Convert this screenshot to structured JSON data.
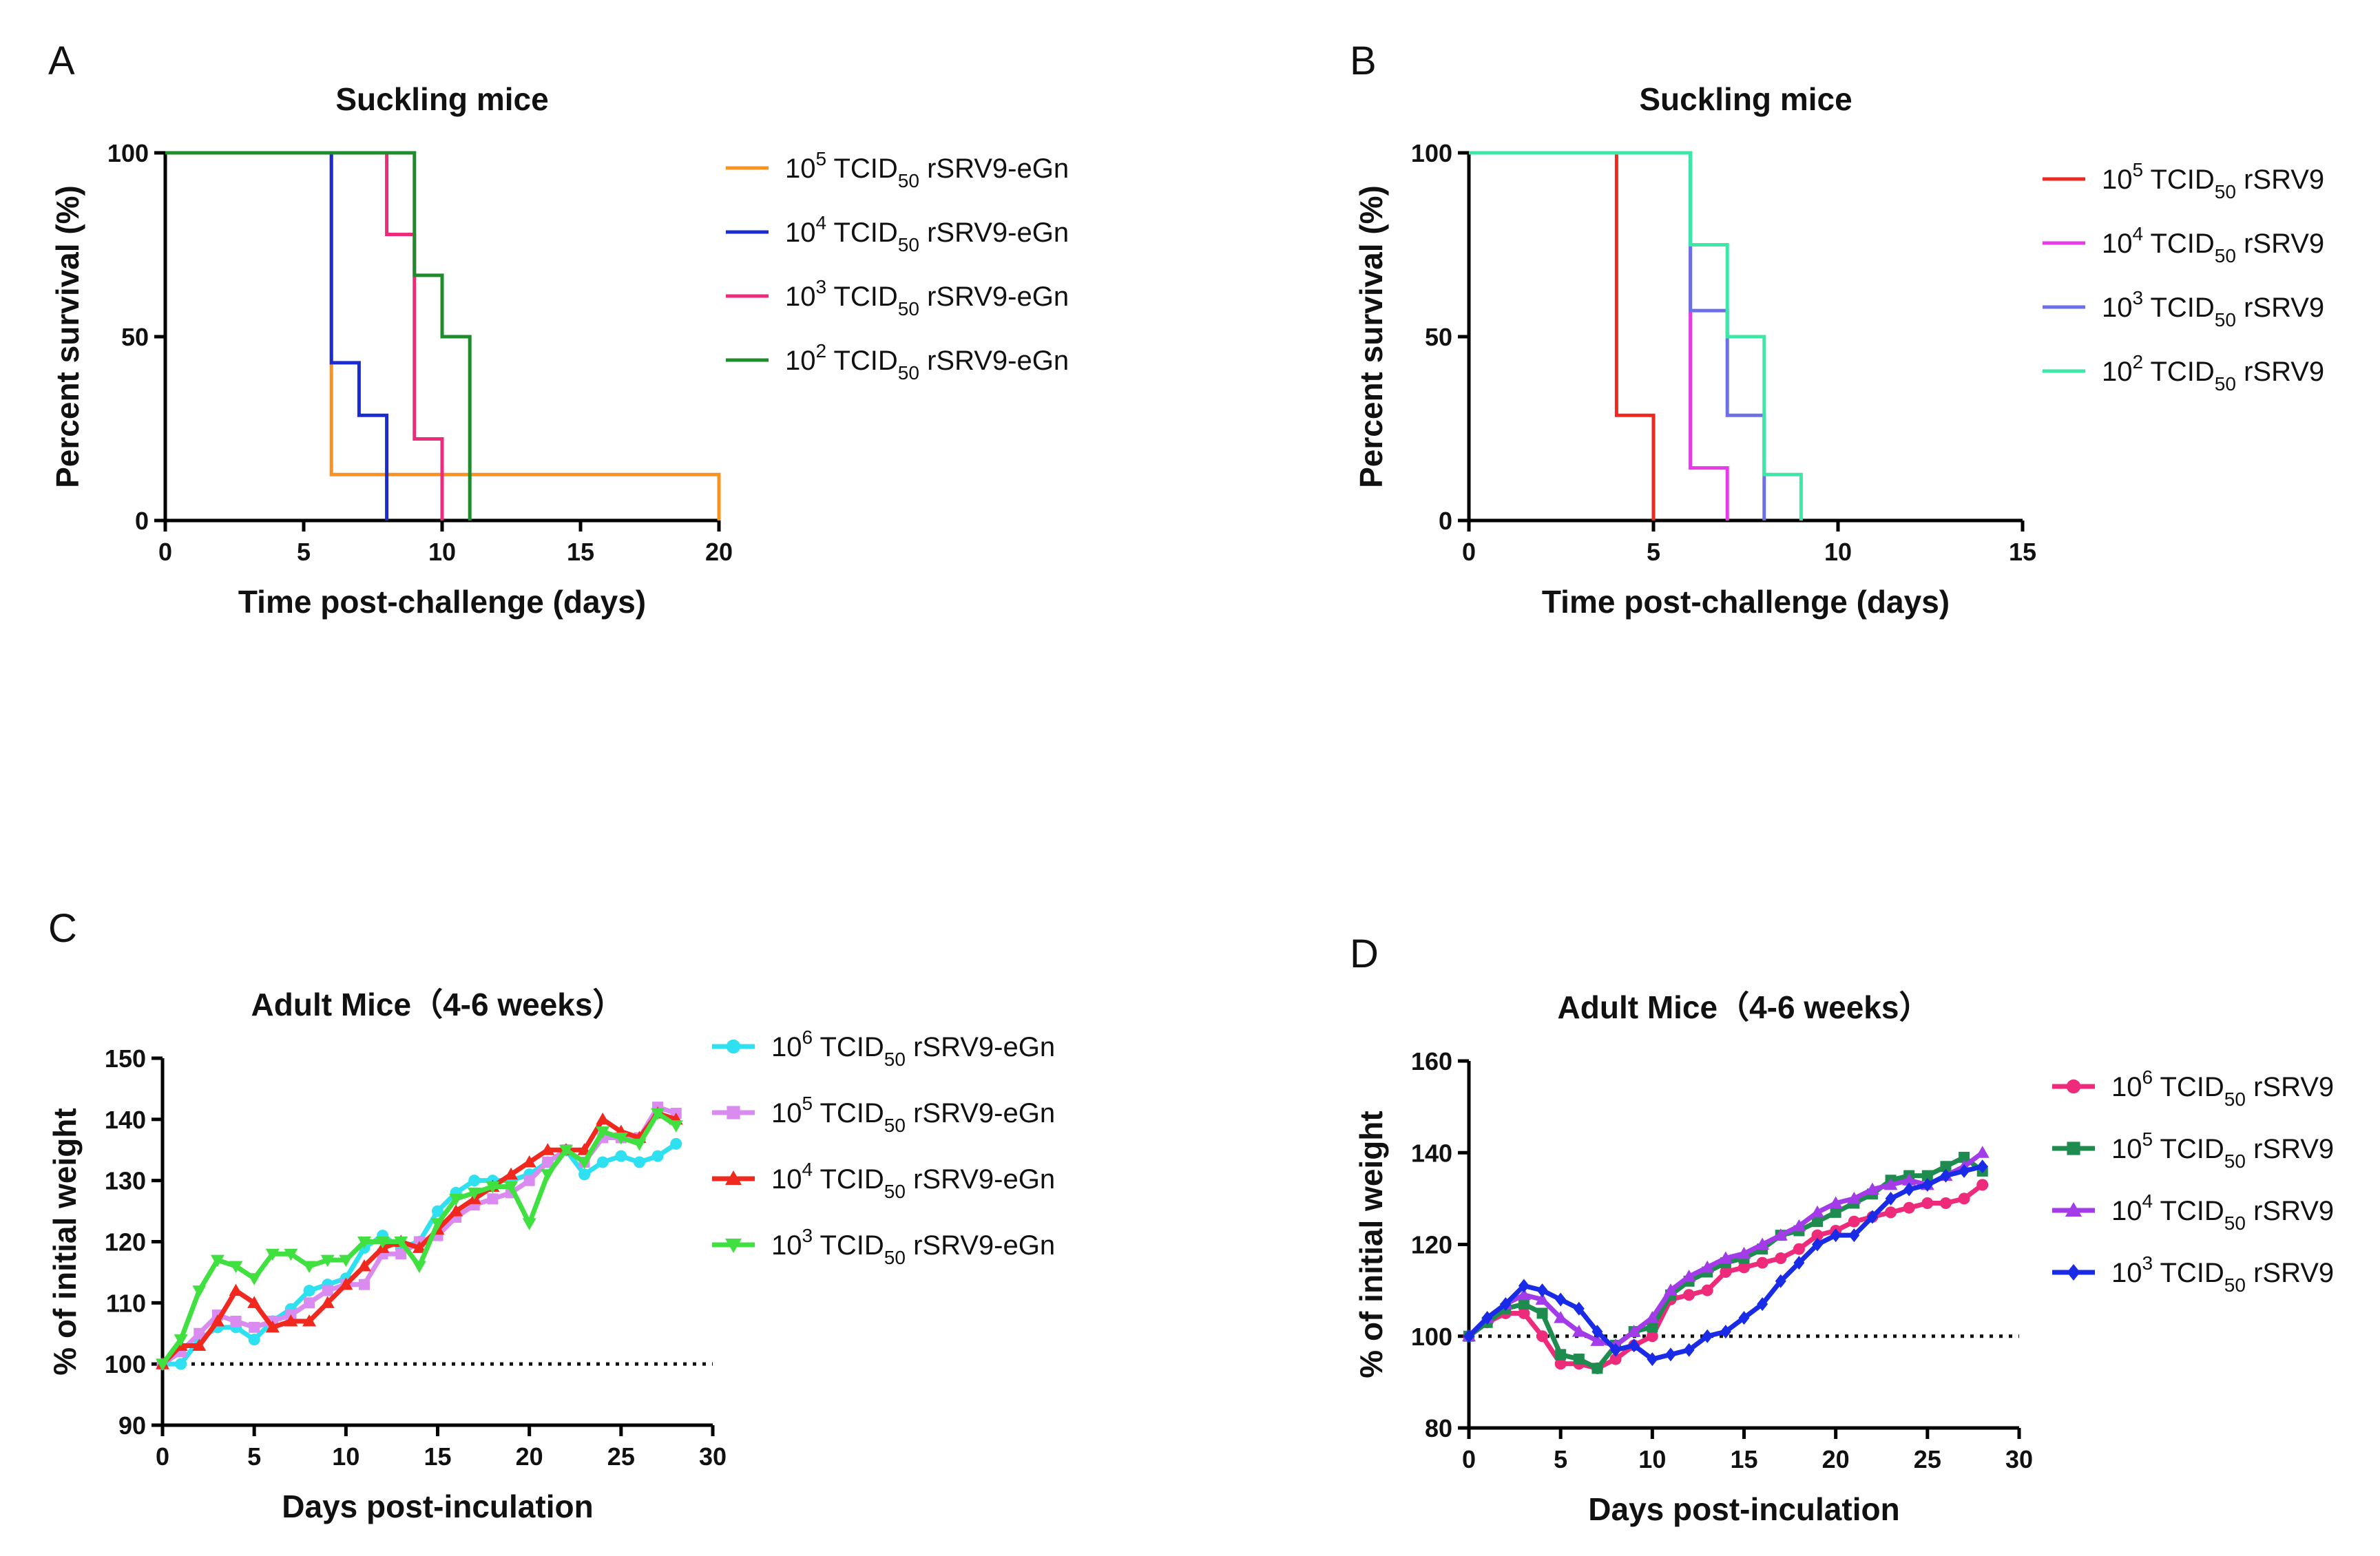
{
  "chart_data": [
    {
      "id": "A",
      "type": "line",
      "panel_label": "A",
      "title": "Suckling mice",
      "xlabel": "Time post-challenge (days)",
      "ylabel": "Percent survival (%)",
      "xlim": [
        0,
        20
      ],
      "ylim": [
        0,
        100
      ],
      "xticks": [
        0,
        5,
        10,
        15,
        20
      ],
      "yticks": [
        0,
        50,
        100
      ],
      "step": true,
      "series": [
        {
          "name": "rSRV9-eGn",
          "exp": "5",
          "color": "#F7931E",
          "marker": "none",
          "x": [
            0,
            6,
            20,
            20
          ],
          "y": [
            100,
            12.5,
            12.5,
            0
          ]
        },
        {
          "name": "rSRV9-eGn",
          "exp": "4",
          "color": "#1A2BD1",
          "marker": "none",
          "x": [
            0,
            6,
            7,
            8
          ],
          "y": [
            100,
            42.9,
            28.6,
            0
          ]
        },
        {
          "name": "rSRV9-eGn",
          "exp": "3",
          "color": "#EE2A7B",
          "marker": "none",
          "x": [
            0,
            8,
            9,
            10
          ],
          "y": [
            100,
            77.8,
            22.2,
            0
          ]
        },
        {
          "name": "rSRV9-eGn",
          "exp": "2",
          "color": "#1E8C2B",
          "marker": "none",
          "x": [
            0,
            9,
            10,
            11
          ],
          "y": [
            100,
            66.7,
            50,
            0
          ]
        }
      ]
    },
    {
      "id": "B",
      "type": "line",
      "panel_label": "B",
      "title": "Suckling mice",
      "xlabel": "Time post-challenge (days)",
      "ylabel": "Percent survival (%)",
      "xlim": [
        0,
        15
      ],
      "ylim": [
        0,
        100
      ],
      "xticks": [
        0,
        5,
        10,
        15
      ],
      "yticks": [
        0,
        50,
        100
      ],
      "step": true,
      "series": [
        {
          "name": "rSRV9",
          "exp": "5",
          "color": "#F0281E",
          "marker": "none",
          "x": [
            0,
            4,
            5
          ],
          "y": [
            100,
            28.6,
            0
          ]
        },
        {
          "name": "rSRV9",
          "exp": "4",
          "color": "#E83BE8",
          "marker": "none",
          "x": [
            0,
            6,
            7
          ],
          "y": [
            100,
            14.3,
            0
          ]
        },
        {
          "name": "rSRV9",
          "exp": "3",
          "color": "#6B6FE8",
          "marker": "none",
          "x": [
            0,
            6,
            7,
            8
          ],
          "y": [
            100,
            57.1,
            28.6,
            0
          ]
        },
        {
          "name": "rSRV9",
          "exp": "2",
          "color": "#3BE8A8",
          "marker": "none",
          "x": [
            0,
            6,
            7,
            8,
            9
          ],
          "y": [
            100,
            75,
            50,
            12.5,
            0
          ]
        }
      ]
    },
    {
      "id": "C",
      "type": "line",
      "panel_label": "C",
      "title": "Adult Mice（4-6 weeks）",
      "xlabel": "Days post-inculation",
      "ylabel": "% of initial weight",
      "xlim": [
        0,
        30
      ],
      "ylim": [
        90,
        150
      ],
      "xticks": [
        0,
        5,
        10,
        15,
        20,
        25,
        30
      ],
      "yticks": [
        90,
        100,
        110,
        120,
        130,
        140,
        150
      ],
      "reference_line": 100,
      "step": false,
      "series": [
        {
          "name": "rSRV9-eGn",
          "exp": "6",
          "color": "#2EE0F0",
          "marker": "circle",
          "x": [
            0,
            1,
            2,
            3,
            4,
            5,
            6,
            7,
            8,
            9,
            10,
            11,
            12,
            13,
            14,
            15,
            16,
            17,
            18,
            19,
            20,
            21,
            22,
            23,
            24,
            25,
            26,
            27,
            28
          ],
          "y": [
            100,
            100,
            104,
            106,
            106,
            104,
            107,
            109,
            112,
            113,
            114,
            119,
            121,
            119,
            120,
            125,
            128,
            130,
            130,
            130,
            131,
            133,
            135,
            131,
            133,
            134,
            133,
            134,
            136
          ]
        },
        {
          "name": "rSRV9-eGn",
          "exp": "5",
          "color": "#D98BF0",
          "marker": "square",
          "x": [
            0,
            1,
            2,
            3,
            4,
            5,
            6,
            7,
            8,
            9,
            10,
            11,
            12,
            13,
            14,
            15,
            16,
            17,
            18,
            19,
            20,
            21,
            22,
            23,
            24,
            25,
            26,
            27,
            28
          ],
          "y": [
            100,
            102,
            105,
            108,
            107,
            106,
            107,
            108,
            110,
            112,
            113,
            113,
            118,
            118,
            120,
            121,
            124,
            126,
            127,
            128,
            130,
            133,
            135,
            133,
            137,
            137,
            137,
            142,
            141
          ]
        },
        {
          "name": "rSRV9-eGn",
          "exp": "4",
          "color": "#F0281E",
          "marker": "triangle",
          "x": [
            0,
            1,
            2,
            3,
            4,
            5,
            6,
            7,
            8,
            9,
            10,
            11,
            12,
            13,
            14,
            15,
            16,
            17,
            18,
            19,
            20,
            21,
            22,
            23,
            24,
            25,
            26,
            27,
            28
          ],
          "y": [
            100,
            103,
            103,
            107,
            112,
            110,
            106,
            107,
            107,
            110,
            113,
            116,
            119,
            120,
            119,
            122,
            125,
            127,
            129,
            131,
            133,
            135,
            135,
            135,
            140,
            138,
            137,
            141,
            140
          ]
        },
        {
          "name": "rSRV9-eGn",
          "exp": "3",
          "color": "#3FE03F",
          "marker": "triangle-down",
          "x": [
            0,
            1,
            2,
            3,
            4,
            5,
            6,
            7,
            8,
            9,
            10,
            11,
            12,
            13,
            14,
            15,
            16,
            17,
            18,
            19,
            20,
            21,
            22,
            23,
            24,
            25,
            26,
            27,
            28
          ],
          "y": [
            100,
            104,
            112,
            117,
            116,
            114,
            118,
            118,
            116,
            117,
            117,
            120,
            120,
            120,
            116,
            123,
            127,
            128,
            129,
            129,
            123,
            131,
            135,
            133,
            138,
            137,
            136,
            141,
            139
          ]
        }
      ]
    },
    {
      "id": "D",
      "type": "line",
      "panel_label": "D",
      "title": "Adult Mice（4-6 weeks）",
      "xlabel": "Days post-inculation",
      "ylabel": "% of initial weight",
      "xlim": [
        0,
        30
      ],
      "ylim": [
        80,
        160
      ],
      "xticks": [
        0,
        5,
        10,
        15,
        20,
        25,
        30
      ],
      "yticks": [
        80,
        100,
        120,
        140,
        160
      ],
      "reference_line": 100,
      "step": false,
      "series": [
        {
          "name": "rSRV9",
          "exp": "6",
          "color": "#EE2A7B",
          "marker": "circle",
          "x": [
            0,
            1,
            2,
            3,
            4,
            5,
            6,
            7,
            8,
            9,
            10,
            11,
            12,
            13,
            14,
            15,
            16,
            17,
            18,
            19,
            20,
            21,
            22,
            23,
            24,
            25,
            26,
            27,
            28
          ],
          "y": [
            100,
            103,
            105,
            105,
            100,
            94,
            94,
            93,
            95,
            98,
            100,
            108,
            109,
            110,
            114,
            115,
            116,
            117,
            119,
            122,
            123,
            125,
            126,
            127,
            128,
            129,
            129,
            130,
            133
          ]
        },
        {
          "name": "rSRV9",
          "exp": "5",
          "color": "#1E8C4E",
          "marker": "square",
          "x": [
            0,
            1,
            2,
            3,
            4,
            5,
            6,
            7,
            8,
            9,
            10,
            11,
            12,
            13,
            14,
            15,
            16,
            17,
            18,
            19,
            20,
            21,
            22,
            23,
            24,
            25,
            26,
            27,
            28
          ],
          "y": [
            100,
            103,
            106,
            107,
            105,
            96,
            95,
            93,
            98,
            101,
            102,
            109,
            112,
            114,
            116,
            117,
            119,
            122,
            123,
            125,
            127,
            129,
            131,
            134,
            135,
            135,
            137,
            139,
            136
          ]
        },
        {
          "name": "rSRV9",
          "exp": "4",
          "color": "#A33BE8",
          "marker": "triangle",
          "x": [
            0,
            1,
            2,
            3,
            4,
            5,
            6,
            7,
            8,
            9,
            10,
            11,
            12,
            13,
            14,
            15,
            16,
            17,
            18,
            19,
            20,
            21,
            22,
            23,
            24,
            25,
            26,
            27,
            28
          ],
          "y": [
            100,
            104,
            107,
            109,
            108,
            104,
            101,
            99,
            98,
            101,
            104,
            110,
            113,
            115,
            117,
            118,
            120,
            122,
            124,
            127,
            129,
            130,
            132,
            133,
            134,
            133,
            135,
            137,
            140
          ]
        },
        {
          "name": "rSRV9",
          "exp": "3",
          "color": "#1A2BE8",
          "marker": "diamond",
          "x": [
            0,
            1,
            2,
            3,
            4,
            5,
            6,
            7,
            8,
            9,
            10,
            11,
            12,
            13,
            14,
            15,
            16,
            17,
            18,
            19,
            20,
            21,
            22,
            23,
            24,
            25,
            26,
            27,
            28
          ],
          "y": [
            100,
            104,
            107,
            111,
            110,
            108,
            106,
            101,
            97,
            98,
            95,
            96,
            97,
            100,
            101,
            104,
            107,
            112,
            116,
            120,
            122,
            122,
            126,
            130,
            132,
            133,
            135,
            136,
            137
          ]
        }
      ]
    }
  ],
  "legend_dose_prefix": "10",
  "legend_unit": "TCID",
  "legend_unit_sub": "50"
}
